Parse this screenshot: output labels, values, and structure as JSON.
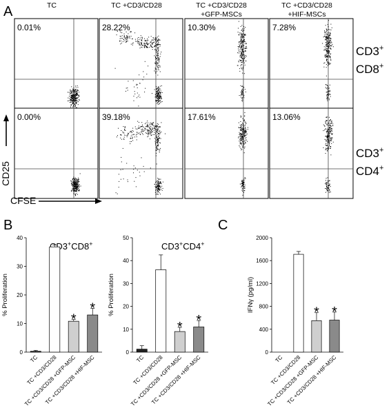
{
  "figure": {
    "panel_labels": [
      "A",
      "B",
      "C"
    ],
    "flow": {
      "column_titles": [
        [
          "TC"
        ],
        [
          "TC +CD3/CD28"
        ],
        [
          "TC +CD3/CD28",
          "+GFP-MSCs"
        ],
        [
          "TC +CD3/CD28",
          "+HIF-MSCs"
        ]
      ],
      "row_labels": [
        {
          "line1": "CD3",
          "sup1": "+",
          "line2": "CD8",
          "sup2": "+"
        },
        {
          "line1": "CD3",
          "sup1": "+",
          "line2": "CD4",
          "sup2": "+"
        }
      ],
      "percentages": [
        [
          "0.01%",
          "28.22%",
          "10.30%",
          "7.28%"
        ],
        [
          "0.00%",
          "39.18%",
          "17.61%",
          "13.06%"
        ]
      ],
      "y_axis_label": "CD25",
      "x_axis_label": "CFSE"
    }
  },
  "chart_data": [
    {
      "type": "bar",
      "panel": "B",
      "title": "CD3",
      "title_sup1": "+",
      "title_mid": "CD8",
      "title_sup2": "+",
      "categories": [
        "TC",
        "TC +CD3/CD28",
        "TC +CD3/CD28 +GFP-MSC",
        "TC +CD3/CD28 +HIF-MSC"
      ],
      "values": [
        0.3,
        36.8,
        10.8,
        13.0
      ],
      "errors": [
        0.3,
        0.7,
        0.6,
        2.3
      ],
      "colors": [
        "#222222",
        "#ffffff",
        "#cfcfcf",
        "#8a8a8a"
      ],
      "significance": [
        "",
        "",
        "*",
        "*"
      ],
      "ylabel": "% Proliferation",
      "ylim": [
        0,
        40
      ],
      "yticks": [
        0,
        10,
        20,
        30,
        40
      ]
    },
    {
      "type": "bar",
      "panel": "B",
      "title": "CD3",
      "title_sup1": "+",
      "title_mid": "CD4",
      "title_sup2": "+",
      "categories": [
        "TC",
        "TC +CD3/CD28",
        "TC +CD3/CD28 +GFP-MSC",
        "TC +CD3/CD28 +HIF-MSC"
      ],
      "values": [
        1.3,
        36.0,
        9.0,
        11.0
      ],
      "errors": [
        1.5,
        6.5,
        1.8,
        2.8
      ],
      "colors": [
        "#222222",
        "#ffffff",
        "#cfcfcf",
        "#8a8a8a"
      ],
      "significance": [
        "",
        "",
        "*",
        "*"
      ],
      "ylabel": "% Proliferation",
      "ylim": [
        0,
        50
      ],
      "yticks": [
        0,
        10,
        20,
        30,
        40,
        50
      ]
    },
    {
      "type": "bar",
      "panel": "C",
      "title": "",
      "categories": [
        "TC",
        "TC +CD3/CD28",
        "TC +CD3/CD28 +GFP-MSC",
        "TC +CD3/CD28 +HIF-MSC"
      ],
      "values": [
        0,
        1710,
        550,
        560
      ],
      "errors": [
        0,
        50,
        140,
        140
      ],
      "colors": [
        "#222222",
        "#ffffff",
        "#cfcfcf",
        "#8a8a8a"
      ],
      "significance": [
        "",
        "",
        "*",
        "*"
      ],
      "ylabel": "IFNγ (pg/ml)",
      "ylim": [
        0,
        2000
      ],
      "yticks": [
        0,
        400,
        800,
        1200,
        1600,
        2000
      ]
    }
  ]
}
